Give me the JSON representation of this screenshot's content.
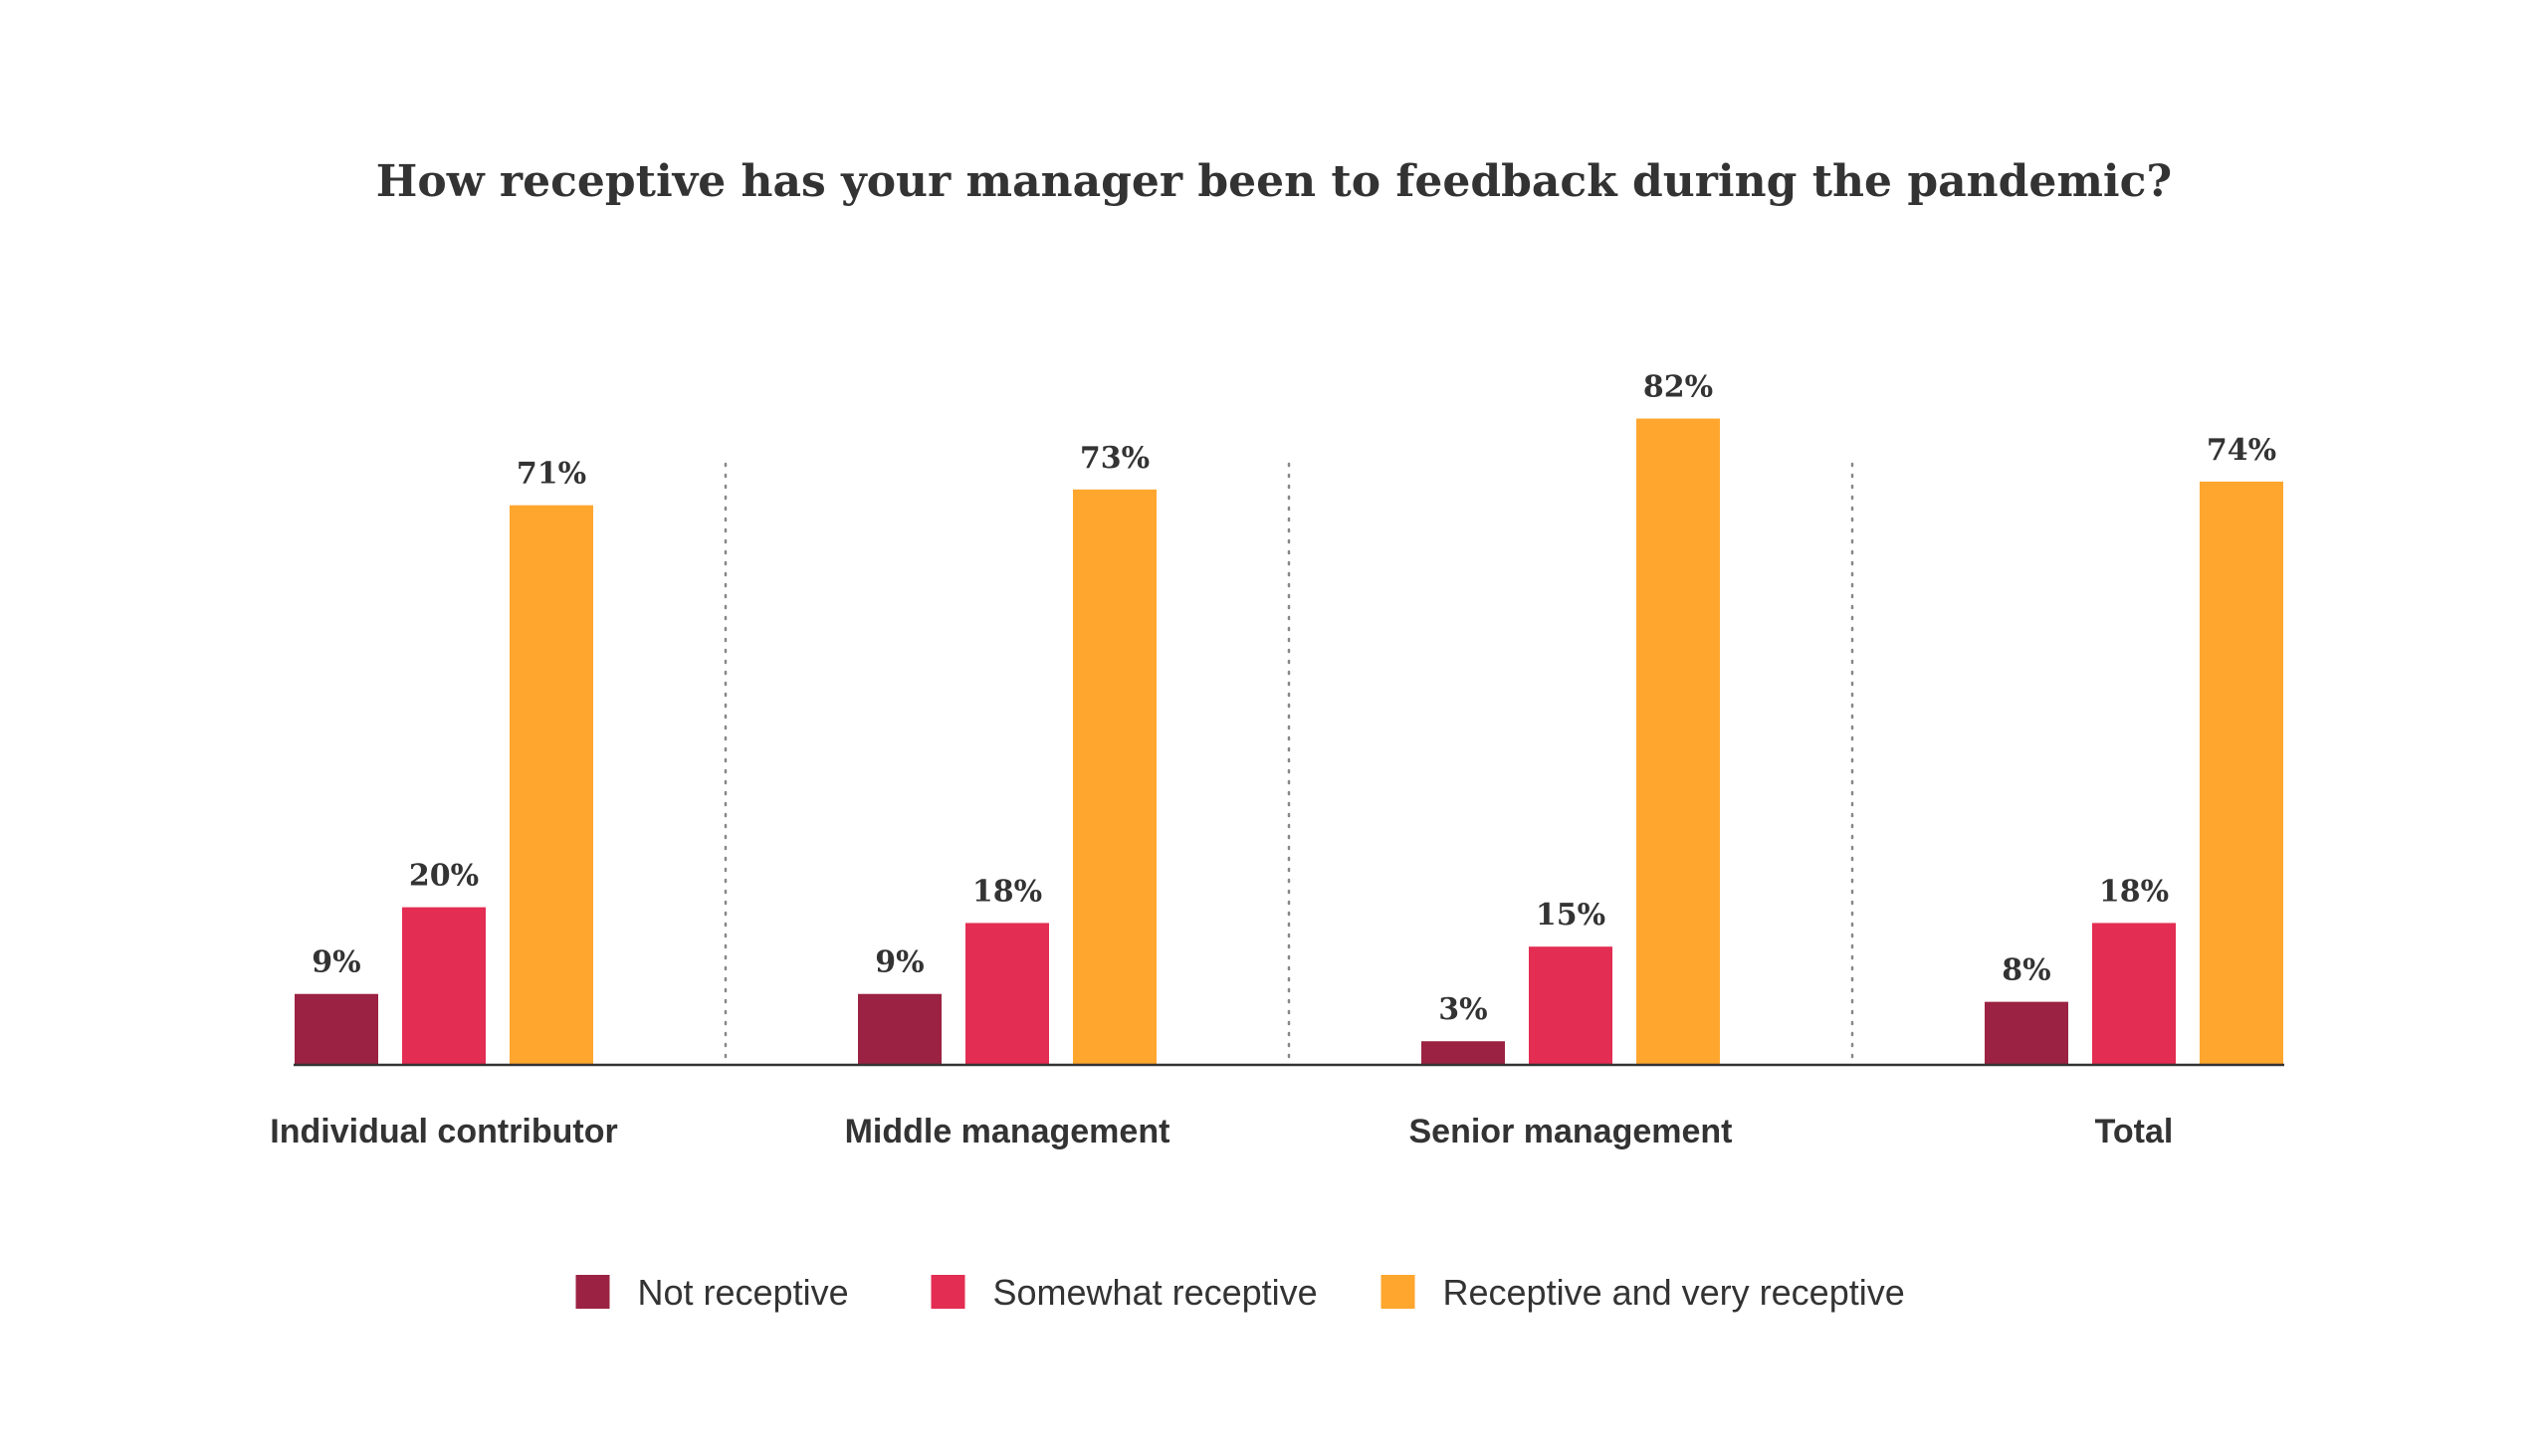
{
  "chart_data": {
    "type": "bar",
    "title": "How receptive has your manager been to feedback during the pandemic?",
    "xlabel": "",
    "ylabel": "",
    "ylim": [
      0,
      100
    ],
    "grid": false,
    "legend_position": "bottom-center",
    "categories": [
      "Individual contributor",
      "Middle management",
      "Senior management",
      "Total"
    ],
    "series": [
      {
        "name": "Not receptive",
        "color": "#9b2242",
        "values": [
          9,
          9,
          3,
          8
        ],
        "labels": [
          "9%",
          "9%",
          "3%",
          "8%"
        ]
      },
      {
        "name": "Somewhat receptive",
        "color": "#e32d52",
        "values": [
          20,
          18,
          15,
          18
        ],
        "labels": [
          "20%",
          "18%",
          "15%",
          "18%"
        ]
      },
      {
        "name": "Receptive and very receptive",
        "color": "#fea62e",
        "values": [
          71,
          73,
          82,
          74
        ],
        "labels": [
          "71%",
          "73%",
          "82%",
          "74%"
        ]
      }
    ],
    "colors": {
      "text": "#333333",
      "axis": "#333333",
      "divider": "#888888"
    }
  }
}
